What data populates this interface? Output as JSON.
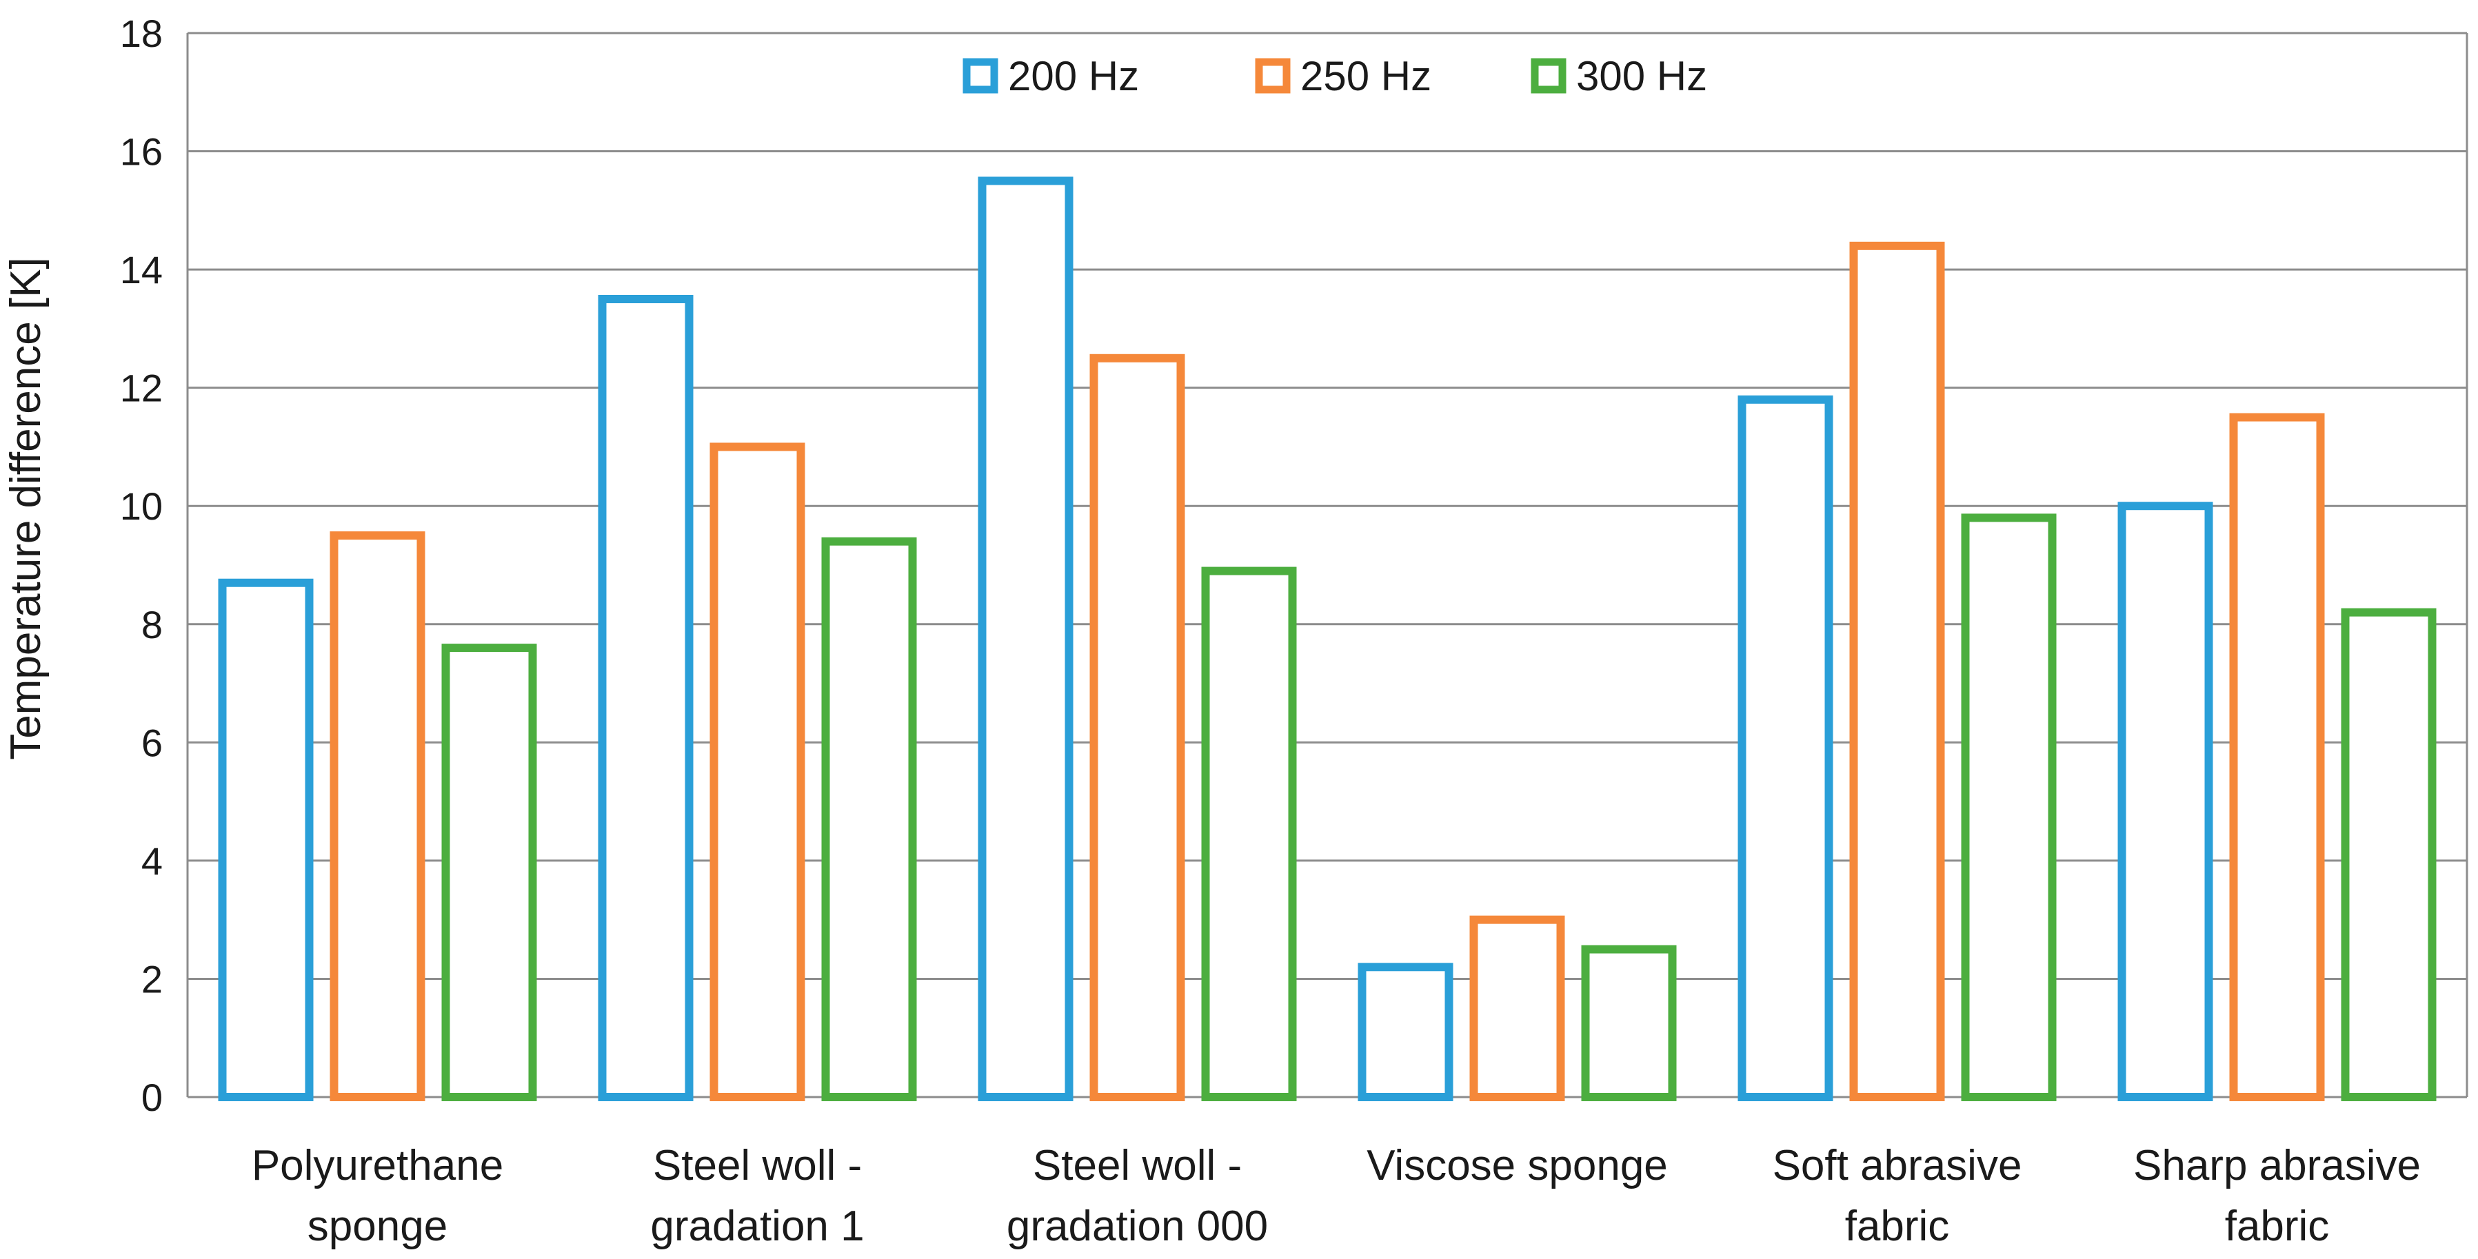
{
  "chart_data": {
    "type": "bar",
    "title": "",
    "xlabel": "",
    "ylabel": "Temperature difference [K]",
    "ylim": [
      0,
      18
    ],
    "yticks": [
      "0",
      "2",
      "4",
      "6",
      "8",
      "10",
      "12",
      "14",
      "16",
      "18"
    ],
    "grid": true,
    "legend_position": "top-center",
    "categories": [
      [
        "Polyurethane",
        "sponge"
      ],
      [
        "Steel woll -",
        "gradation 1"
      ],
      [
        "Steel woll -",
        "gradation 000"
      ],
      [
        "Viscose sponge"
      ],
      [
        "Soft abrasive",
        "fabric"
      ],
      [
        "Sharp abrasive",
        "fabric"
      ]
    ],
    "series": [
      {
        "name": "200 Hz",
        "color": "#2a9fd8",
        "values": [
          8.7,
          13.5,
          15.5,
          2.2,
          11.8,
          10.0
        ]
      },
      {
        "name": "250 Hz",
        "color": "#f5883a",
        "values": [
          9.5,
          11.0,
          12.5,
          3.0,
          14.4,
          11.5
        ]
      },
      {
        "name": "300 Hz",
        "color": "#4cae3f",
        "values": [
          7.6,
          9.4,
          8.9,
          2.5,
          9.8,
          8.2
        ]
      }
    ]
  }
}
